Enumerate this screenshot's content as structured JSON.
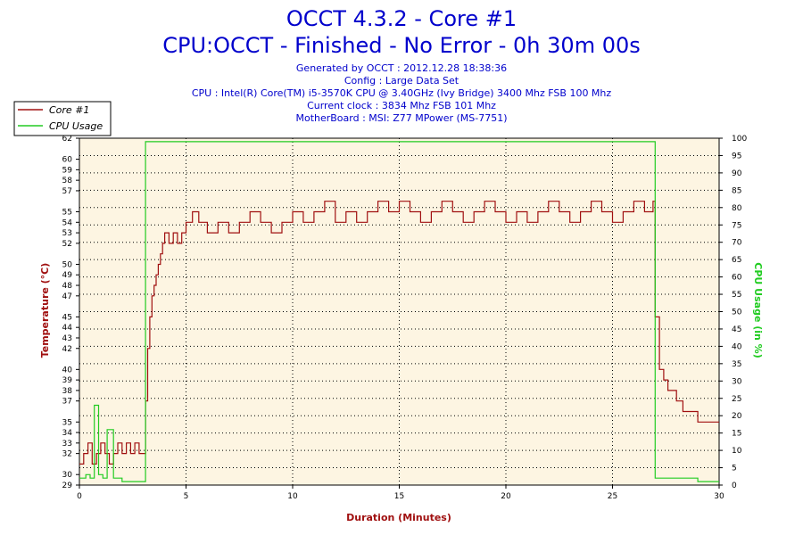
{
  "chart_data": {
    "type": "line",
    "title": "OCCT 4.3.2 - Core #1",
    "subtitle": "CPU:OCCT - Finished - No Error - 0h 30m 00s",
    "info_lines": [
      "Generated by OCCT : 2012.12.28 18:38:36",
      "Config : Large Data Set",
      "CPU : Intel(R) Core(TM) i5-3570K CPU @ 3.40GHz (Ivy Bridge) 3400 Mhz FSB 100 Mhz",
      "Current clock : 3834 Mhz FSB 101 Mhz",
      "MotherBoard : MSI: Z77 MPower (MS-7751)"
    ],
    "xlabel": "Duration (Minutes)",
    "ylabel": "Temperature (°C)",
    "y2label": "CPU Usage (in %)",
    "xlim": [
      0,
      30
    ],
    "ylim": [
      29,
      62
    ],
    "y2lim": [
      0,
      100
    ],
    "x_ticks": [
      0,
      5,
      10,
      15,
      20,
      25,
      30
    ],
    "y_ticks": [
      29,
      30,
      32,
      33,
      34,
      35,
      37,
      38,
      39,
      40,
      42,
      43,
      44,
      45,
      47,
      48,
      49,
      50,
      52,
      53,
      54,
      55,
      57,
      58,
      59,
      60,
      62
    ],
    "y2_ticks": [
      0,
      5,
      10,
      15,
      20,
      25,
      30,
      35,
      40,
      45,
      50,
      55,
      60,
      65,
      70,
      75,
      80,
      85,
      90,
      95,
      100
    ],
    "grid": true,
    "legend_position": "top-left",
    "colors": {
      "temperature": "#a01010",
      "cpu_usage": "#22cc22",
      "plot_bg": "#fdf5e2"
    },
    "series": [
      {
        "name": "Core #1",
        "axis": "left",
        "x": [
          0,
          0.2,
          0.4,
          0.6,
          0.8,
          1.0,
          1.2,
          1.4,
          1.6,
          1.8,
          2.0,
          2.2,
          2.4,
          2.6,
          2.8,
          3.0,
          3.1,
          3.2,
          3.3,
          3.4,
          3.5,
          3.6,
          3.7,
          3.8,
          3.9,
          4.0,
          4.2,
          4.4,
          4.6,
          4.8,
          5.0,
          5.3,
          5.6,
          6.0,
          6.5,
          7,
          7.5,
          8,
          8.5,
          9,
          9.5,
          10,
          10.5,
          11,
          11.5,
          12,
          12.5,
          13,
          13.5,
          14,
          14.5,
          15,
          15.5,
          16,
          16.5,
          17,
          17.5,
          18,
          18.5,
          19,
          19.5,
          20,
          20.5,
          21,
          21.5,
          22,
          22.5,
          23,
          23.5,
          24,
          24.5,
          25,
          25.5,
          26,
          26.5,
          26.8,
          26.9,
          27.0,
          27.2,
          27.4,
          27.6,
          27.8,
          28.0,
          28.3,
          28.6,
          29.0,
          29.4,
          29.7,
          30
        ],
        "values": [
          31,
          32,
          33,
          31,
          32,
          33,
          32,
          31,
          32,
          33,
          32,
          33,
          32,
          33,
          32,
          32,
          37,
          42,
          45,
          47,
          48,
          49,
          50,
          51,
          52,
          53,
          52,
          53,
          52,
          53,
          54,
          55,
          54,
          53,
          54,
          53,
          54,
          55,
          54,
          53,
          54,
          55,
          54,
          55,
          56,
          54,
          55,
          54,
          55,
          56,
          55,
          56,
          55,
          54,
          55,
          56,
          55,
          54,
          55,
          56,
          55,
          54,
          55,
          54,
          55,
          56,
          55,
          54,
          55,
          56,
          55,
          54,
          55,
          56,
          55,
          55,
          56,
          45,
          40,
          39,
          38,
          38,
          37,
          36,
          36,
          35,
          35,
          35,
          35
        ]
      },
      {
        "name": "CPU Usage",
        "axis": "right",
        "x": [
          0,
          0.3,
          0.5,
          0.7,
          0.9,
          1.1,
          1.3,
          1.6,
          2.0,
          2.5,
          3.0,
          3.05,
          3.1,
          5,
          10,
          15,
          20,
          25,
          26.9,
          26.95,
          27.0,
          28,
          29,
          30
        ],
        "values": [
          2,
          3,
          2,
          23,
          3,
          2,
          16,
          2,
          1,
          1,
          1,
          1,
          99,
          99,
          99,
          99,
          99,
          99,
          99,
          99,
          2,
          2,
          1,
          1
        ]
      }
    ]
  }
}
